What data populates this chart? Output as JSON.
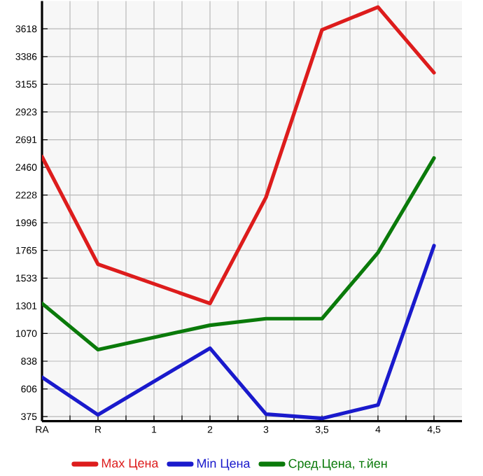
{
  "chart_data": {
    "type": "line",
    "categories": [
      "RA",
      "R",
      "1",
      "2",
      "3",
      "3,5",
      "4",
      "4,5"
    ],
    "series": [
      {
        "name": "Max Цена",
        "color": "#dd1c1c",
        "values": [
          2549,
          1649,
          null,
          1321,
          2209,
          3610,
          3800,
          3251
        ]
      },
      {
        "name": "Min Цена",
        "color": "#1a1acc",
        "values": [
          704,
          390,
          null,
          947,
          395,
          360,
          472,
          1804
        ]
      },
      {
        "name": "Сред.Цена, т.йен",
        "color": "#0a7a0a",
        "values": [
          1321,
          935,
          null,
          1139,
          1194,
          1194,
          1746,
          2537
        ]
      }
    ],
    "ylim": [
      337,
      3850
    ],
    "yticks": [
      375,
      606,
      838,
      1070,
      1301,
      1533,
      1765,
      1996,
      2228,
      2460,
      2691,
      2923,
      3155,
      3386,
      3618
    ],
    "grid": true,
    "legend": "bottom",
    "marker": "none",
    "line_style": "solid"
  }
}
